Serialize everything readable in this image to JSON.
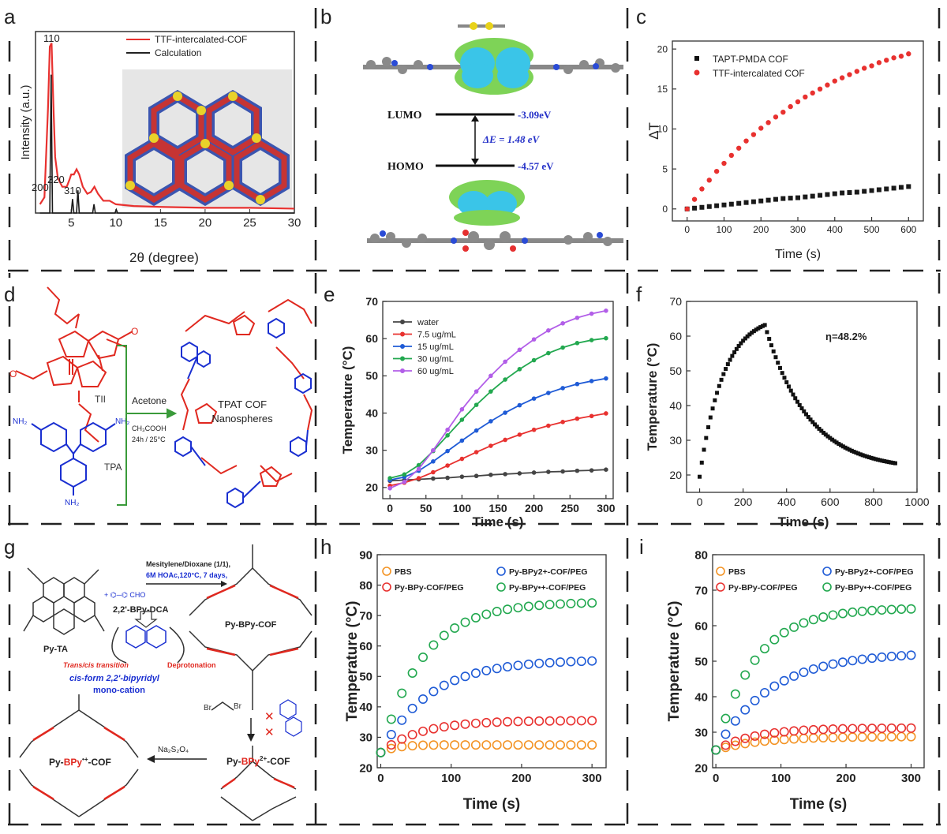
{
  "figure": {
    "panel_labels": [
      "a",
      "b",
      "c",
      "d",
      "e",
      "f",
      "g",
      "h",
      "i"
    ]
  },
  "panel_b": {
    "lumo_label": "LUMO",
    "homo_label": "HOMO",
    "lumo_value": "-3.09eV",
    "homo_value": "-4.57 eV",
    "gap_label": "ΔE = 1.48 eV"
  },
  "panel_d": {
    "tii_label": "TII",
    "tpa_label": "TPA",
    "solvent": "Acetone",
    "catalyst": "CH₃COOH",
    "conditions": "24h / 25°C",
    "product": "TPAT COF",
    "product_line2": "Nanospheres",
    "nh2": "NH₂",
    "cho": "O"
  },
  "panel_g": {
    "reagent_line1": "Mesitylene/Dioxane (1/1),",
    "reagent_line2": "6M HOAc,120°C, 7 days,",
    "py_ta": "Py-TA",
    "bpy_dca": "2,2'-BPy-DCA",
    "py_bpy_cof": "Py-BPy-COF",
    "trans_cis": "Trans/cis transition",
    "deprotonation": "Deprotonation",
    "cis_form": "cis-form 2,2'-bipyridyl",
    "mono_cation": "mono-cation",
    "reductant": "Na₂S₂O₄",
    "py_bpy_radical": "Py-BPy•+-COF",
    "py_bpy_2plus": "Py-BPy2+-COF",
    "br": "Br"
  },
  "colors": {
    "red_series": "#e8312f",
    "black_series": "#1a1a1a",
    "blue_series": "#1f5bd6",
    "green_series": "#22a84f",
    "purple_series": "#b25ee8",
    "orange_series": "#f39324",
    "struct_red": "#e0281f",
    "struct_blue": "#1a2fd1",
    "arrow_green": "#3a9a3a"
  },
  "chart_data": [
    {
      "panel": "a",
      "type": "line",
      "xlabel": "2θ (degree)",
      "ylabel": "Intensity (a.u.)",
      "xlim": [
        1,
        30
      ],
      "xticks": [
        5,
        10,
        15,
        20,
        25,
        30
      ],
      "legend": [
        "TTF-intercalated-COF",
        "Calculation"
      ],
      "peak_labels": [
        "110",
        "200",
        "220",
        "310"
      ],
      "series": [
        {
          "name": "TTF-intercalated-COF",
          "x": [
            1.5,
            2.0,
            2.4,
            2.6,
            2.8,
            3.0,
            3.2,
            3.5,
            4.0,
            4.5,
            4.8,
            5.0,
            5.3,
            5.6,
            5.9,
            6.3,
            6.8,
            7.2,
            7.6,
            8.0,
            8.6,
            9.3,
            10,
            12,
            15,
            20,
            25,
            30
          ],
          "values": [
            0.05,
            0.09,
            0.6,
            0.95,
            0.97,
            0.62,
            0.32,
            0.2,
            0.15,
            0.15,
            0.19,
            0.22,
            0.22,
            0.25,
            0.22,
            0.15,
            0.11,
            0.12,
            0.15,
            0.11,
            0.07,
            0.07,
            0.05,
            0.04,
            0.035,
            0.03,
            0.03,
            0.025
          ]
        },
        {
          "name": "Calculation",
          "x": [
            1.5,
            2.6,
            2.75,
            2.9,
            3.2,
            5.0,
            5.15,
            5.3,
            5.6,
            5.75,
            5.9,
            7.4,
            7.55,
            7.7,
            9.9,
            10.05,
            10.2,
            15,
            20,
            25,
            30
          ],
          "values": [
            0,
            0,
            0.79,
            0,
            0,
            0,
            0.08,
            0,
            0,
            0.13,
            0,
            0,
            0.05,
            0,
            0,
            0.02,
            0,
            0,
            0,
            0,
            0
          ]
        }
      ]
    },
    {
      "panel": "c",
      "type": "scatter",
      "xlabel": "Time (s)",
      "ylabel": "ΔT",
      "xlim": [
        -40,
        640
      ],
      "ylim": [
        -1.5,
        21
      ],
      "xticks": [
        0,
        100,
        200,
        300,
        400,
        500,
        600
      ],
      "yticks": [
        0,
        5,
        10,
        15,
        20
      ],
      "series": [
        {
          "name": "TAPT-PMDA COF",
          "x": [
            0,
            20,
            40,
            60,
            80,
            100,
            120,
            140,
            160,
            180,
            200,
            220,
            240,
            260,
            280,
            300,
            320,
            340,
            360,
            380,
            400,
            420,
            440,
            460,
            480,
            500,
            520,
            540,
            560,
            580,
            600
          ],
          "values": [
            0,
            0.1,
            0.2,
            0.3,
            0.4,
            0.5,
            0.6,
            0.7,
            0.8,
            0.9,
            1.0,
            1.1,
            1.2,
            1.3,
            1.35,
            1.4,
            1.5,
            1.6,
            1.7,
            1.8,
            1.9,
            2.0,
            2.05,
            2.1,
            2.2,
            2.3,
            2.4,
            2.5,
            2.6,
            2.7,
            2.8
          ]
        },
        {
          "name": "TTF-intercalated COF",
          "x": [
            0,
            20,
            40,
            60,
            80,
            100,
            120,
            140,
            160,
            180,
            200,
            220,
            240,
            260,
            280,
            300,
            320,
            340,
            360,
            380,
            400,
            420,
            440,
            460,
            480,
            500,
            520,
            540,
            560,
            580,
            600
          ],
          "values": [
            0,
            1.2,
            2.5,
            3.6,
            4.7,
            5.7,
            6.7,
            7.6,
            8.5,
            9.3,
            10.1,
            10.8,
            11.5,
            12.1,
            12.8,
            13.4,
            14.0,
            14.5,
            15.0,
            15.5,
            16.0,
            16.4,
            16.8,
            17.2,
            17.6,
            17.9,
            18.3,
            18.6,
            18.9,
            19.1,
            19.4
          ]
        }
      ]
    },
    {
      "panel": "e",
      "type": "line",
      "xlabel": "Time (s)",
      "ylabel": "Temperature (°C)",
      "xlim": [
        -10,
        310
      ],
      "ylim": [
        17,
        70
      ],
      "xticks": [
        0,
        50,
        100,
        150,
        200,
        250,
        300
      ],
      "yticks": [
        20,
        30,
        40,
        50,
        60,
        70
      ],
      "series": [
        {
          "name": "water",
          "x": [
            0,
            20,
            40,
            60,
            80,
            100,
            120,
            140,
            160,
            180,
            200,
            220,
            240,
            260,
            280,
            300
          ],
          "values": [
            21.8,
            22.0,
            22.2,
            22.4,
            22.6,
            22.9,
            23.1,
            23.4,
            23.6,
            23.8,
            24.0,
            24.2,
            24.3,
            24.5,
            24.6,
            24.8
          ]
        },
        {
          "name": "7.5 ug/mL",
          "x": [
            0,
            20,
            40,
            60,
            80,
            100,
            120,
            140,
            160,
            180,
            200,
            220,
            240,
            260,
            280,
            300
          ],
          "values": [
            20.5,
            21.3,
            22.5,
            24.1,
            25.9,
            27.7,
            29.5,
            31.2,
            32.8,
            34.2,
            35.5,
            36.6,
            37.6,
            38.5,
            39.2,
            39.9
          ]
        },
        {
          "name": "15 ug/mL",
          "x": [
            0,
            20,
            40,
            60,
            80,
            100,
            120,
            140,
            160,
            180,
            200,
            220,
            240,
            260,
            280,
            300
          ],
          "values": [
            22.0,
            22.8,
            24.5,
            27.0,
            29.8,
            32.6,
            35.3,
            37.8,
            40.1,
            42.1,
            43.9,
            45.4,
            46.7,
            47.8,
            48.6,
            49.3
          ]
        },
        {
          "name": "30 ug/mL",
          "x": [
            0,
            20,
            40,
            60,
            80,
            100,
            120,
            140,
            160,
            180,
            200,
            220,
            240,
            260,
            280,
            300
          ],
          "values": [
            22.5,
            23.5,
            26.0,
            29.8,
            34.0,
            38.2,
            42.2,
            45.8,
            49.0,
            51.8,
            54.2,
            56.1,
            57.6,
            58.8,
            59.6,
            60.1
          ]
        },
        {
          "name": "60 ug/mL",
          "x": [
            0,
            20,
            40,
            60,
            80,
            100,
            120,
            140,
            160,
            180,
            200,
            220,
            240,
            260,
            280,
            300
          ],
          "values": [
            19.8,
            21.5,
            25.0,
            30.0,
            35.5,
            41.0,
            45.8,
            50.0,
            53.8,
            57.0,
            59.8,
            62.2,
            64.1,
            65.6,
            66.7,
            67.5
          ]
        }
      ]
    },
    {
      "panel": "f",
      "type": "scatter",
      "xlabel": "Time (s)",
      "ylabel": "Temperature (°C)",
      "xlim": [
        -60,
        1000
      ],
      "ylim": [
        15,
        70
      ],
      "xticks": [
        0,
        200,
        400,
        600,
        800,
        1000
      ],
      "yticks": [
        20,
        30,
        40,
        50,
        60,
        70
      ],
      "annotation": "η=48.2%",
      "peak": {
        "time": 300,
        "temp": 63.2
      },
      "start": {
        "time": 0,
        "temp": 19.5
      },
      "end": {
        "time": 900,
        "temp": 22.5
      }
    },
    {
      "panel": "h",
      "type": "scatter",
      "xlabel": "Time (s)",
      "ylabel": "Temperature (°C)",
      "xlim": [
        -5,
        320
      ],
      "ylim": [
        20,
        90
      ],
      "xticks": [
        0,
        100,
        200,
        300
      ],
      "yticks": [
        20,
        30,
        40,
        50,
        60,
        70,
        80,
        90
      ],
      "legend": [
        "PBS",
        "Py-BPy-COF/PEG",
        "Py-BPy2+-COF/PEG",
        "Py-BPy•+-COF/PEG"
      ],
      "series": [
        {
          "name": "PBS",
          "x0": 0,
          "step": 15,
          "start": 25,
          "plateau": 27.5,
          "tau": 20
        },
        {
          "name": "Py-BPy-COF/PEG",
          "x0": 0,
          "step": 15,
          "start": 25,
          "plateau": 35.5,
          "tau": 55
        },
        {
          "name": "Py-BPy2+-COF/PEG",
          "x0": 0,
          "step": 15,
          "start": 25,
          "plateau": 55.5,
          "tau": 70
        },
        {
          "name": "Py-BPy•+-COF/PEG",
          "x0": 0,
          "step": 15,
          "start": 25,
          "plateau": 74.5,
          "tau": 60
        }
      ]
    },
    {
      "panel": "i",
      "type": "scatter",
      "xlabel": "Time (s)",
      "ylabel": "Temperature (°C)",
      "xlim": [
        -5,
        320
      ],
      "ylim": [
        20,
        80
      ],
      "xticks": [
        0,
        100,
        200,
        300
      ],
      "yticks": [
        20,
        30,
        40,
        50,
        60,
        70,
        80
      ],
      "legend": [
        "PBS",
        "Py-BPy-COF/PEG",
        "Py-BPy2+-COF/PEG",
        "Py-BPy•+-COF/PEG"
      ],
      "series": [
        {
          "name": "PBS",
          "x0": 0,
          "step": 15,
          "start": 25,
          "plateau": 28.8,
          "tau": 70
        },
        {
          "name": "Py-BPy-COF/PEG",
          "x0": 0,
          "step": 15,
          "start": 25,
          "plateau": 31.2,
          "tau": 60
        },
        {
          "name": "Py-BPy2+-COF/PEG",
          "x0": 0,
          "step": 15,
          "start": 25,
          "plateau": 52.5,
          "tau": 85
        },
        {
          "name": "Py-BPy•+-COF/PEG",
          "x0": 0,
          "step": 15,
          "start": 25,
          "plateau": 65.0,
          "tau": 60
        }
      ]
    }
  ]
}
